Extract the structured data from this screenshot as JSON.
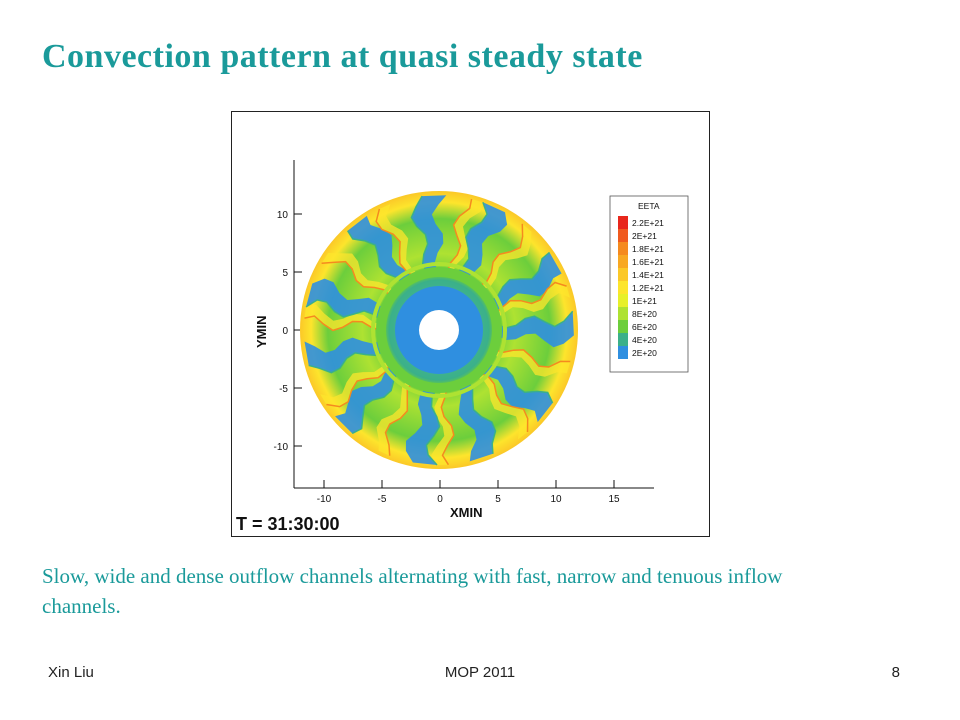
{
  "slide": {
    "title": "Convection pattern at quasi steady state",
    "caption": "Slow, wide and dense outflow channels alternating with fast, narrow and tenuous inflow channels.",
    "footer_left": "Xin Liu",
    "footer_center": "MOP 2011",
    "page_number": "8"
  },
  "figure": {
    "xlabel": "XMIN",
    "ylabel": "YMIN",
    "time_label": "T = 31:30:00",
    "x_ticks": [
      "-10",
      "-5",
      "0",
      "5",
      "10",
      "15"
    ],
    "y_ticks": [
      "10",
      "5",
      "0",
      "-5",
      "-10"
    ],
    "legend": {
      "title": "EETA",
      "entries": [
        {
          "label": "2.2E+21",
          "color": "#e8271c"
        },
        {
          "label": "2E+21",
          "color": "#f05a1e"
        },
        {
          "label": "1.8E+21",
          "color": "#f58a1f"
        },
        {
          "label": "1.6E+21",
          "color": "#f8a823"
        },
        {
          "label": "1.4E+21",
          "color": "#fbc828"
        },
        {
          "label": "1.2E+21",
          "color": "#fde52c"
        },
        {
          "label": "1E+21",
          "color": "#e7f02a"
        },
        {
          "label": "8E+20",
          "color": "#aee232"
        },
        {
          "label": "6E+20",
          "color": "#6cce3c"
        },
        {
          "label": "4E+20",
          "color": "#3bb08a"
        },
        {
          "label": "2E+20",
          "color": "#2f8fe0"
        }
      ]
    }
  }
}
